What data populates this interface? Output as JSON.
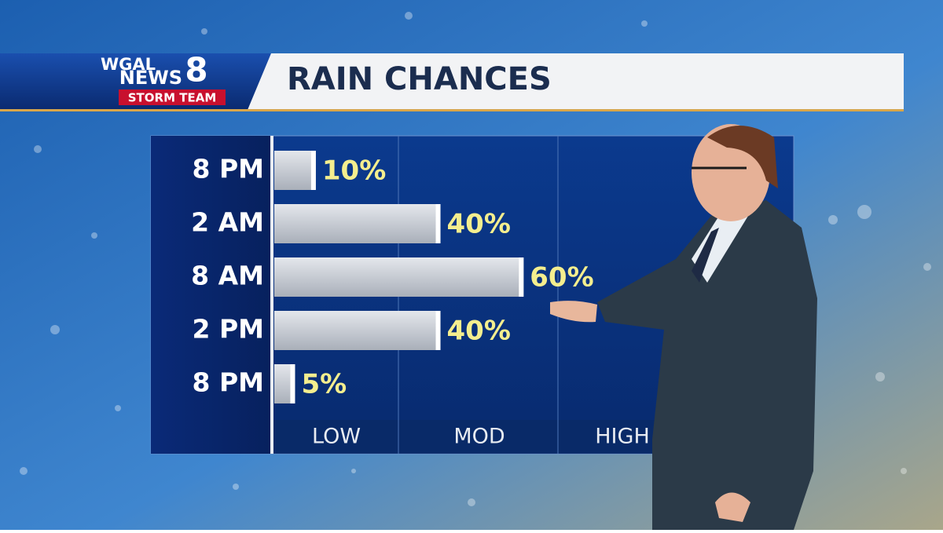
{
  "header": {
    "station": "WGAL",
    "news": "NEWS",
    "number": "8",
    "team": "STORM TEAM"
  },
  "chart_data": {
    "type": "bar",
    "orientation": "horizontal",
    "title": "RAIN CHANCES",
    "categories": [
      "8 PM",
      "2 AM",
      "8 AM",
      "2 PM",
      "8 PM"
    ],
    "values": [
      10,
      40,
      60,
      40,
      5
    ],
    "value_labels": [
      "10%",
      "40%",
      "60%",
      "40%",
      "5%"
    ],
    "xlim": [
      0,
      125
    ],
    "band_labels": [
      "LOW",
      "MOD",
      "HIGH"
    ],
    "color": "#c9ced6",
    "label_color": "#f4ee8e"
  }
}
